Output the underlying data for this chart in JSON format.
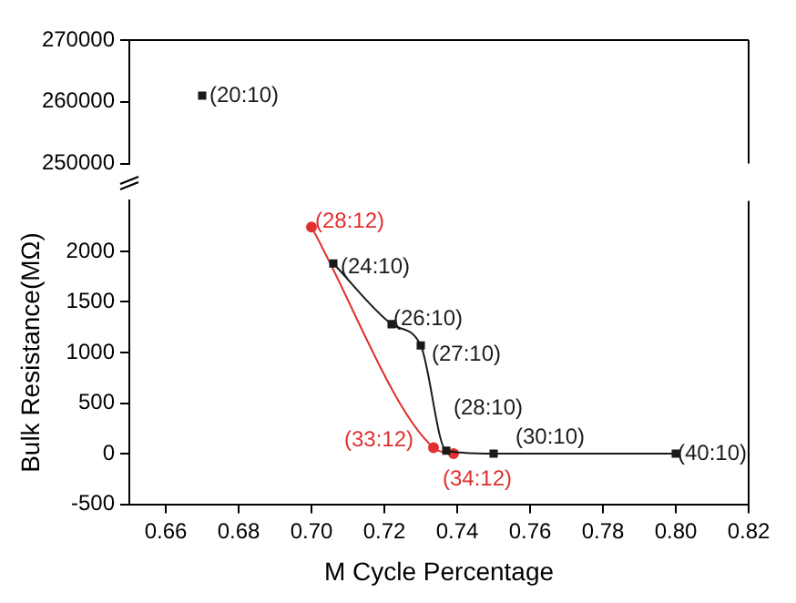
{
  "chart_data": [
    {
      "type": "line",
      "xlim": [
        0.65,
        0.82
      ],
      "ylim": [
        250000,
        270000
      ],
      "yticks": [
        250000,
        260000,
        270000
      ],
      "tick_labels": "y",
      "grid": false,
      "legend": false,
      "series": [
        {
          "color": "#1a1a1a",
          "marker": "square",
          "x": [
            0.67
          ],
          "values": [
            261000
          ],
          "value_labels": [
            "(20:10)"
          ]
        }
      ]
    },
    {
      "type": "line",
      "xlabel": "M Cycle Percentage",
      "ylabel": "Bulk Resistance(MΩ)",
      "xlim": [
        0.65,
        0.82
      ],
      "ylim": [
        -500,
        2500
      ],
      "yticks": [
        -500,
        0,
        500,
        1000,
        1500,
        2000
      ],
      "grid": false,
      "legend": false,
      "xticks": [
        {
          "value": 0.66,
          "label": "0.66"
        },
        {
          "value": 0.68,
          "label": "0.68"
        },
        {
          "value": 0.7,
          "label": "0.70"
        },
        {
          "value": 0.72,
          "label": "0.72"
        },
        {
          "value": 0.74,
          "label": "0.74"
        },
        {
          "value": 0.76,
          "label": "0.76"
        },
        {
          "value": 0.78,
          "label": "0.78"
        },
        {
          "value": 0.8,
          "label": "0.80"
        },
        {
          "value": 0.82,
          "label": "0.82"
        }
      ],
      "series": [
        {
          "color": "#1a1a1a",
          "marker": "square",
          "x": [
            0.706,
            0.722,
            0.73,
            0.737,
            0.75,
            0.8
          ],
          "values": [
            1880,
            1280,
            1070,
            30,
            0,
            0
          ],
          "value_labels": [
            "(24:10)",
            "(26:10)",
            "(27:10)",
            "(28:10)",
            "(30:10)",
            "(40:10)"
          ]
        },
        {
          "color": "#e03030",
          "marker": "circle",
          "x": [
            0.7,
            0.7335,
            0.739
          ],
          "values": [
            2240,
            60,
            0
          ],
          "value_labels": [
            "(28:12)",
            "(33:12)",
            "(34:12)"
          ]
        }
      ]
    }
  ]
}
